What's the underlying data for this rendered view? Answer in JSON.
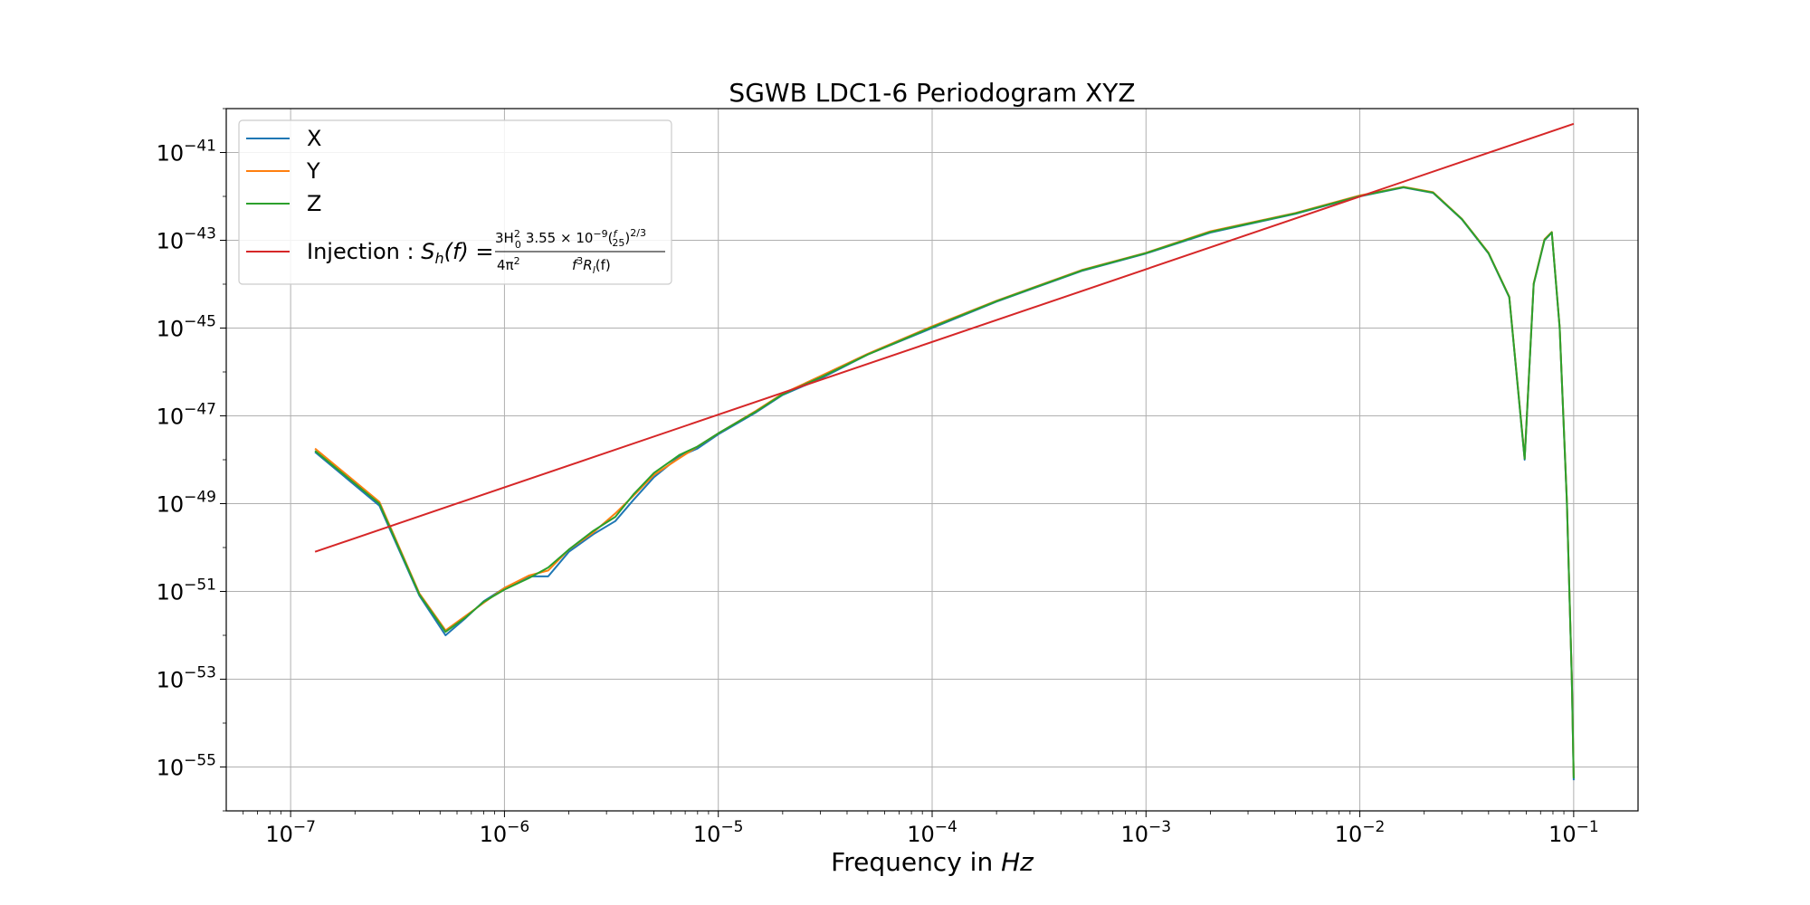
{
  "chart_data": {
    "type": "line",
    "title": "SGWB LDC1-6 Periodogram XYZ",
    "xlabel": "Frequency in Hz",
    "xlabel_plain": "Frequency in ",
    "xlabel_unit": "Hz",
    "ylabel": "",
    "xscale": "log",
    "yscale": "log",
    "xlim": [
      5e-08,
      0.2
    ],
    "ylim": [
      1e-56,
      1e-40
    ],
    "grid": true,
    "legend_position": "upper-left",
    "x_ticks": [
      {
        "value": 1e-07,
        "label": "10",
        "exp": "−7"
      },
      {
        "value": 1e-06,
        "label": "10",
        "exp": "−6"
      },
      {
        "value": 1e-05,
        "label": "10",
        "exp": "−5"
      },
      {
        "value": 0.0001,
        "label": "10",
        "exp": "−4"
      },
      {
        "value": 0.001,
        "label": "10",
        "exp": "−3"
      },
      {
        "value": 0.01,
        "label": "10",
        "exp": "−2"
      },
      {
        "value": 0.1,
        "label": "10",
        "exp": "−1"
      }
    ],
    "y_ticks": [
      {
        "value": 1e-41,
        "label": "10",
        "exp": "−41"
      },
      {
        "value": 1e-43,
        "label": "10",
        "exp": "−43"
      },
      {
        "value": 1e-45,
        "label": "10",
        "exp": "−45"
      },
      {
        "value": 1e-47,
        "label": "10",
        "exp": "−47"
      },
      {
        "value": 1e-49,
        "label": "10",
        "exp": "−49"
      },
      {
        "value": 1e-51,
        "label": "10",
        "exp": "−51"
      },
      {
        "value": 1e-53,
        "label": "10",
        "exp": "−53"
      },
      {
        "value": 1e-55,
        "label": "10",
        "exp": "−55"
      }
    ],
    "series": [
      {
        "name": "X",
        "color": "#1f77b4",
        "x": [
          1.3e-07,
          2.6e-07,
          4e-07,
          5.3e-07,
          6.6e-07,
          8e-07,
          1e-06,
          1.3e-06,
          1.6e-06,
          2e-06,
          2.6e-06,
          3.3e-06,
          4e-06,
          5e-06,
          6.6e-06,
          8e-06,
          1e-05,
          1.5e-05,
          2e-05,
          3e-05,
          5e-05,
          0.0001,
          0.0002,
          0.0005,
          0.001,
          0.002,
          0.005,
          0.01,
          0.016,
          0.022,
          0.03,
          0.04,
          0.05,
          0.059,
          0.065,
          0.073,
          0.079,
          0.086,
          0.093,
          0.098,
          0.1
        ],
        "y": [
          1.5e-48,
          9e-50,
          8e-52,
          1e-52,
          2.5e-52,
          6e-52,
          1.2e-51,
          2.2e-51,
          2.2e-51,
          8e-51,
          2e-50,
          4e-50,
          1.2e-49,
          4e-49,
          1.2e-48,
          1.8e-48,
          3.8e-48,
          1.2e-47,
          3e-47,
          7e-47,
          2.5e-46,
          1e-45,
          4e-45,
          2e-44,
          5e-44,
          1.5e-43,
          4e-43,
          1e-42,
          1.6e-42,
          1.2e-42,
          3e-43,
          5e-44,
          5e-45,
          1e-48,
          1e-44,
          1e-43,
          1.5e-43,
          1e-45,
          1e-49,
          1e-53,
          5e-56
        ]
      },
      {
        "name": "Y",
        "color": "#ff7f0e",
        "x": [
          1.3e-07,
          2.6e-07,
          4e-07,
          5.3e-07,
          6.6e-07,
          8e-07,
          1e-06,
          1.3e-06,
          1.6e-06,
          2e-06,
          2.6e-06,
          3.3e-06,
          4e-06,
          5e-06,
          6.6e-06,
          8e-06,
          1e-05,
          1.5e-05,
          2e-05,
          3e-05,
          5e-05,
          0.0001,
          0.0002,
          0.0005,
          0.001,
          0.002,
          0.005,
          0.01,
          0.016,
          0.022,
          0.03,
          0.04,
          0.05,
          0.059,
          0.065,
          0.073,
          0.079,
          0.086,
          0.093,
          0.098,
          0.1
        ],
        "y": [
          1.8e-48,
          1.1e-49,
          9e-52,
          1.3e-52,
          2.8e-52,
          5.5e-52,
          1.2e-51,
          2.3e-51,
          3e-51,
          9e-51,
          2.2e-50,
          6e-50,
          1.5e-49,
          4.5e-49,
          1.1e-48,
          2e-48,
          4e-48,
          1.3e-47,
          3.2e-47,
          8e-47,
          2.6e-46,
          1.1e-45,
          4.2e-45,
          2.1e-44,
          5.2e-44,
          1.6e-43,
          4.2e-43,
          1.05e-42,
          1.65e-42,
          1.25e-42,
          3.1e-43,
          5.2e-44,
          5.2e-45,
          1.1e-48,
          1.05e-44,
          1.05e-43,
          1.55e-43,
          1.05e-45,
          1.1e-49,
          1.1e-53,
          6e-56
        ]
      },
      {
        "name": "Z",
        "color": "#2ca02c",
        "x": [
          1.3e-07,
          2.6e-07,
          4e-07,
          5.3e-07,
          6.6e-07,
          8e-07,
          1e-06,
          1.3e-06,
          1.6e-06,
          2e-06,
          2.6e-06,
          3.3e-06,
          4e-06,
          5e-06,
          6.6e-06,
          8e-06,
          1e-05,
          1.5e-05,
          2e-05,
          3e-05,
          5e-05,
          0.0001,
          0.0002,
          0.0005,
          0.001,
          0.002,
          0.005,
          0.01,
          0.016,
          0.022,
          0.03,
          0.04,
          0.05,
          0.059,
          0.065,
          0.073,
          0.079,
          0.086,
          0.093,
          0.098,
          0.1
        ],
        "y": [
          1.6e-48,
          1e-49,
          8.5e-52,
          1.2e-52,
          2.6e-52,
          5.8e-52,
          1.1e-51,
          2e-51,
          3.5e-51,
          9e-51,
          2.4e-50,
          5e-50,
          1.6e-49,
          5e-49,
          1.3e-48,
          2e-48,
          4e-48,
          1.25e-47,
          3.1e-47,
          7.5e-47,
          2.5e-46,
          1.05e-45,
          4.1e-45,
          2.05e-44,
          5.1e-44,
          1.55e-43,
          4.1e-43,
          1.02e-42,
          1.62e-42,
          1.22e-42,
          3.05e-43,
          5.1e-44,
          5.1e-45,
          1.05e-48,
          1.02e-44,
          1.02e-43,
          1.52e-43,
          1.02e-45,
          1.05e-49,
          1.05e-53,
          5.5e-56
        ]
      },
      {
        "name": "Injection",
        "color": "#d62728",
        "x": [
          1.3e-07,
          0.1
        ],
        "y": [
          8e-51,
          4.5e-41
        ]
      }
    ],
    "legend": [
      {
        "label": "X",
        "color": "#1f77b4"
      },
      {
        "label": "Y",
        "color": "#ff7f0e"
      },
      {
        "label": "Z",
        "color": "#2ca02c"
      },
      {
        "label": "Injection : ",
        "color": "#d62728",
        "formula_lhs": "S",
        "formula_sub": "h",
        "formula_arg": "(f) =",
        "num_1": "3H",
        "num_1_sub": "0",
        "num_1_sup": "2",
        "num_2": "3.55 × 10",
        "num_2_sup": "−9",
        "num_3": "(",
        "frac_f": "f",
        "frac_25": "25",
        "num_4": ")",
        "num_4_sup": "2/3",
        "den_1": "4π",
        "den_1_sup": "2",
        "den_2": "f",
        "den_2_sup": "3",
        "den_3": "R",
        "den_3_sub": "l",
        "den_4": "(f)"
      }
    ]
  }
}
